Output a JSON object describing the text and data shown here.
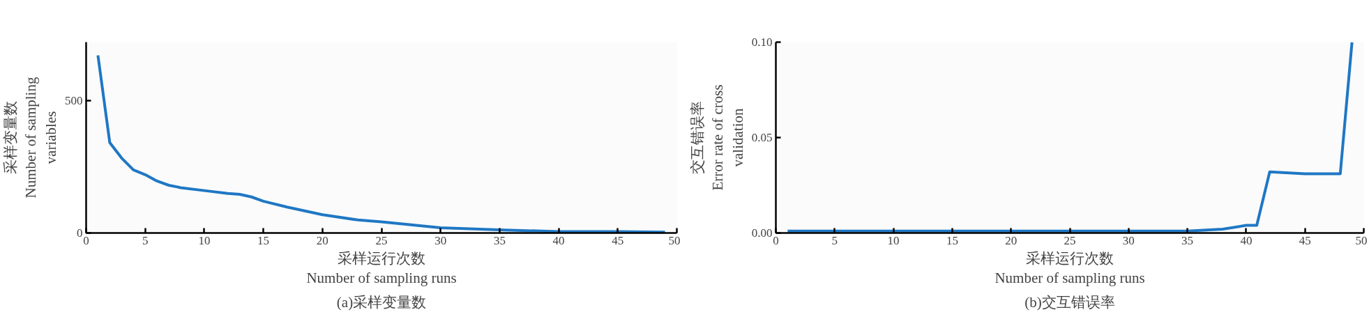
{
  "chart_data": [
    {
      "type": "line",
      "title": "(a)采样变量数",
      "xlabel": "采样运行次数\nNumber of sampling runs",
      "ylabel": "采样变量数\nNumber of sampling\nvariables",
      "x": [
        1,
        2,
        3,
        4,
        5,
        6,
        7,
        8,
        10,
        12,
        13,
        14,
        15,
        17,
        20,
        23,
        25,
        30,
        35,
        40,
        45,
        49
      ],
      "series": [
        {
          "color": "#1f77c4",
          "values": [
            670,
            341,
            283,
            238,
            220,
            196,
            180,
            171,
            160,
            149,
            146,
            136,
            120,
            98,
            69,
            49,
            42,
            20,
            12,
            5,
            5,
            3
          ]
        }
      ],
      "xlim": [
        0,
        50
      ],
      "xticks": [
        0,
        5,
        10,
        15,
        20,
        25,
        30,
        35,
        40,
        45,
        50
      ],
      "ylim": [
        0,
        720
      ],
      "yticks": [
        0,
        500
      ],
      "grid": false
    },
    {
      "type": "line",
      "title": "(b)交互错误率",
      "xlabel": "采样运行次数\nNumber of sampling runs",
      "ylabel": "交互错误率\nError rate of cross\nvalidation",
      "x": [
        1,
        5,
        10,
        15,
        20,
        25,
        30,
        35,
        38,
        40,
        40.9,
        42,
        45,
        48,
        49
      ],
      "series": [
        {
          "color": "#1f77c4",
          "values": [
            0.001,
            0.001,
            0.001,
            0.001,
            0.001,
            0.001,
            0.001,
            0.001,
            0.002,
            0.004,
            0.004,
            0.032,
            0.031,
            0.031,
            0.1
          ]
        }
      ],
      "xlim": [
        0,
        50
      ],
      "xticks": [
        0,
        5,
        10,
        15,
        20,
        25,
        30,
        35,
        40,
        45,
        50
      ],
      "ylim": [
        0,
        0.1
      ],
      "yticks": [
        {
          "value": 0,
          "label": "0.00"
        },
        {
          "value": 0.05,
          "label": "0.05"
        },
        {
          "value": 0.1,
          "label": "0.10"
        }
      ],
      "grid": false
    }
  ]
}
